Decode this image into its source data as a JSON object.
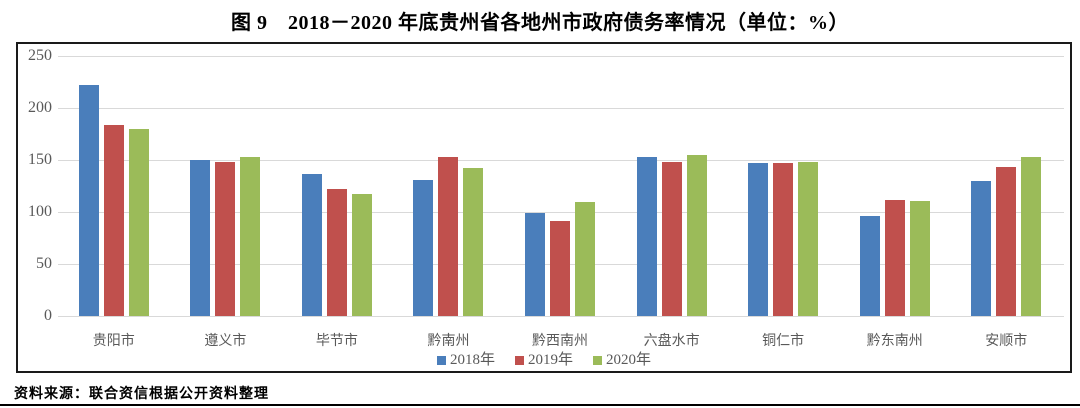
{
  "title": "图 9　2018－2020 年底贵州省各地州市政府债务率情况（单位：%）",
  "source_note": "资料来源：联合资信根据公开资料整理",
  "chart_data": {
    "type": "bar",
    "title": "图 9　2018－2020 年底贵州省各地州市政府债务率情况（单位：%）",
    "categories": [
      "贵阳市",
      "遵义市",
      "毕节市",
      "黔南州",
      "黔西南州",
      "六盘水市",
      "铜仁市",
      "黔东南州",
      "安顺市"
    ],
    "series": [
      {
        "name": "2018年",
        "color": "#4a7ebb",
        "values": [
          222,
          150,
          137,
          131,
          99,
          153,
          147,
          96,
          130
        ]
      },
      {
        "name": "2019年",
        "color": "#c0504d",
        "values": [
          184,
          148,
          122,
          153,
          91,
          148,
          147,
          112,
          143
        ]
      },
      {
        "name": "2020年",
        "color": "#9bbb59",
        "values": [
          180,
          153,
          117,
          142,
          110,
          155,
          148,
          111,
          153
        ]
      }
    ],
    "xlabel": "",
    "ylabel": "",
    "ylim": [
      0,
      250
    ],
    "yticks": [
      250,
      200,
      150,
      100,
      50,
      0
    ],
    "grid": "horizontal",
    "legend_position": "bottom",
    "unit": "%"
  },
  "colors": {
    "gridline": "#d9d9d9",
    "axis_text": "#595959",
    "frame_border": "#1a1a1a"
  }
}
